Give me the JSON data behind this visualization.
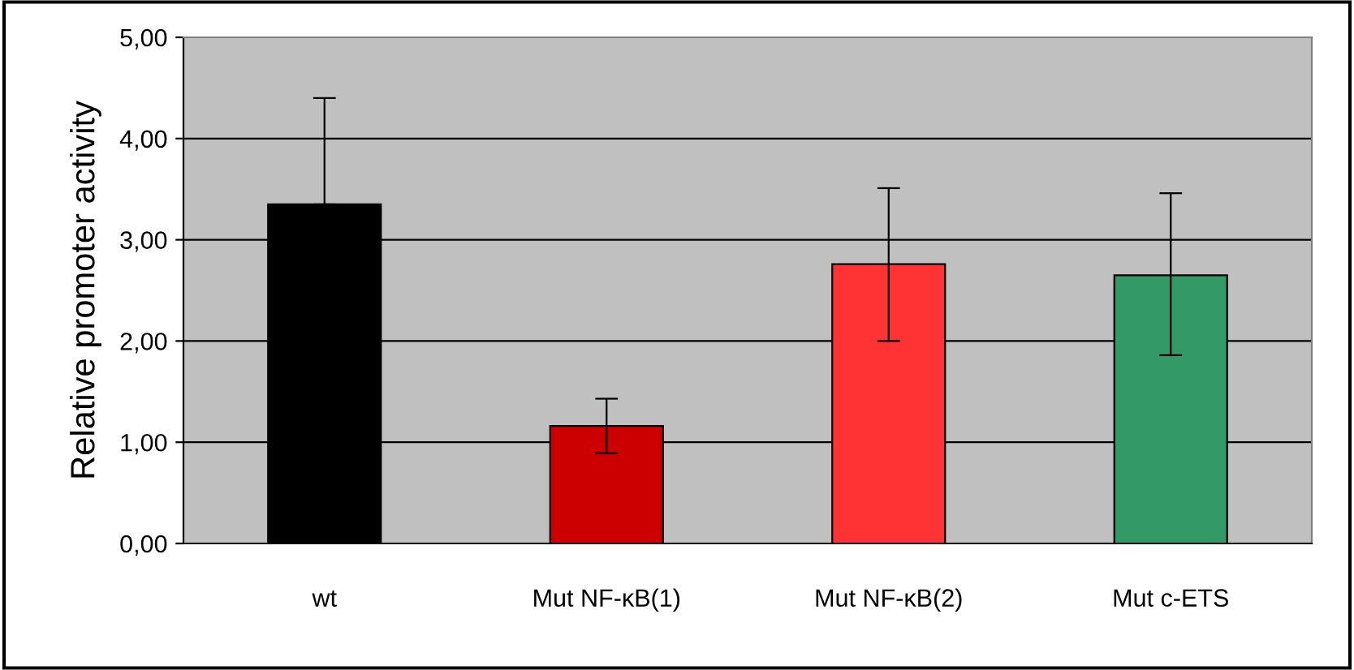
{
  "chart_data": {
    "type": "bar",
    "ylabel": "Relative promoter activity",
    "categories": [
      "wt",
      "Mut NF-κB(1)",
      "Mut NF-κB(2)",
      "Mut c-ETS"
    ],
    "values": [
      3.35,
      1.16,
      2.76,
      2.65
    ],
    "colors": [
      "#000000",
      "#cc0000",
      "#ff3333",
      "#339966"
    ],
    "errors": [
      [
        3.35,
        4.4
      ],
      [
        0.89,
        1.43
      ],
      [
        2.0,
        3.51
      ],
      [
        1.86,
        3.46
      ]
    ],
    "ylim": [
      0,
      5
    ],
    "yticks": [
      {
        "value": 0,
        "label": "0,00"
      },
      {
        "value": 1,
        "label": "1,00"
      },
      {
        "value": 2,
        "label": "2,00"
      },
      {
        "value": 3,
        "label": "3,00"
      },
      {
        "value": 4,
        "label": "4,00"
      },
      {
        "value": 5,
        "label": "5,00"
      }
    ],
    "grid": "y",
    "legend": false
  }
}
